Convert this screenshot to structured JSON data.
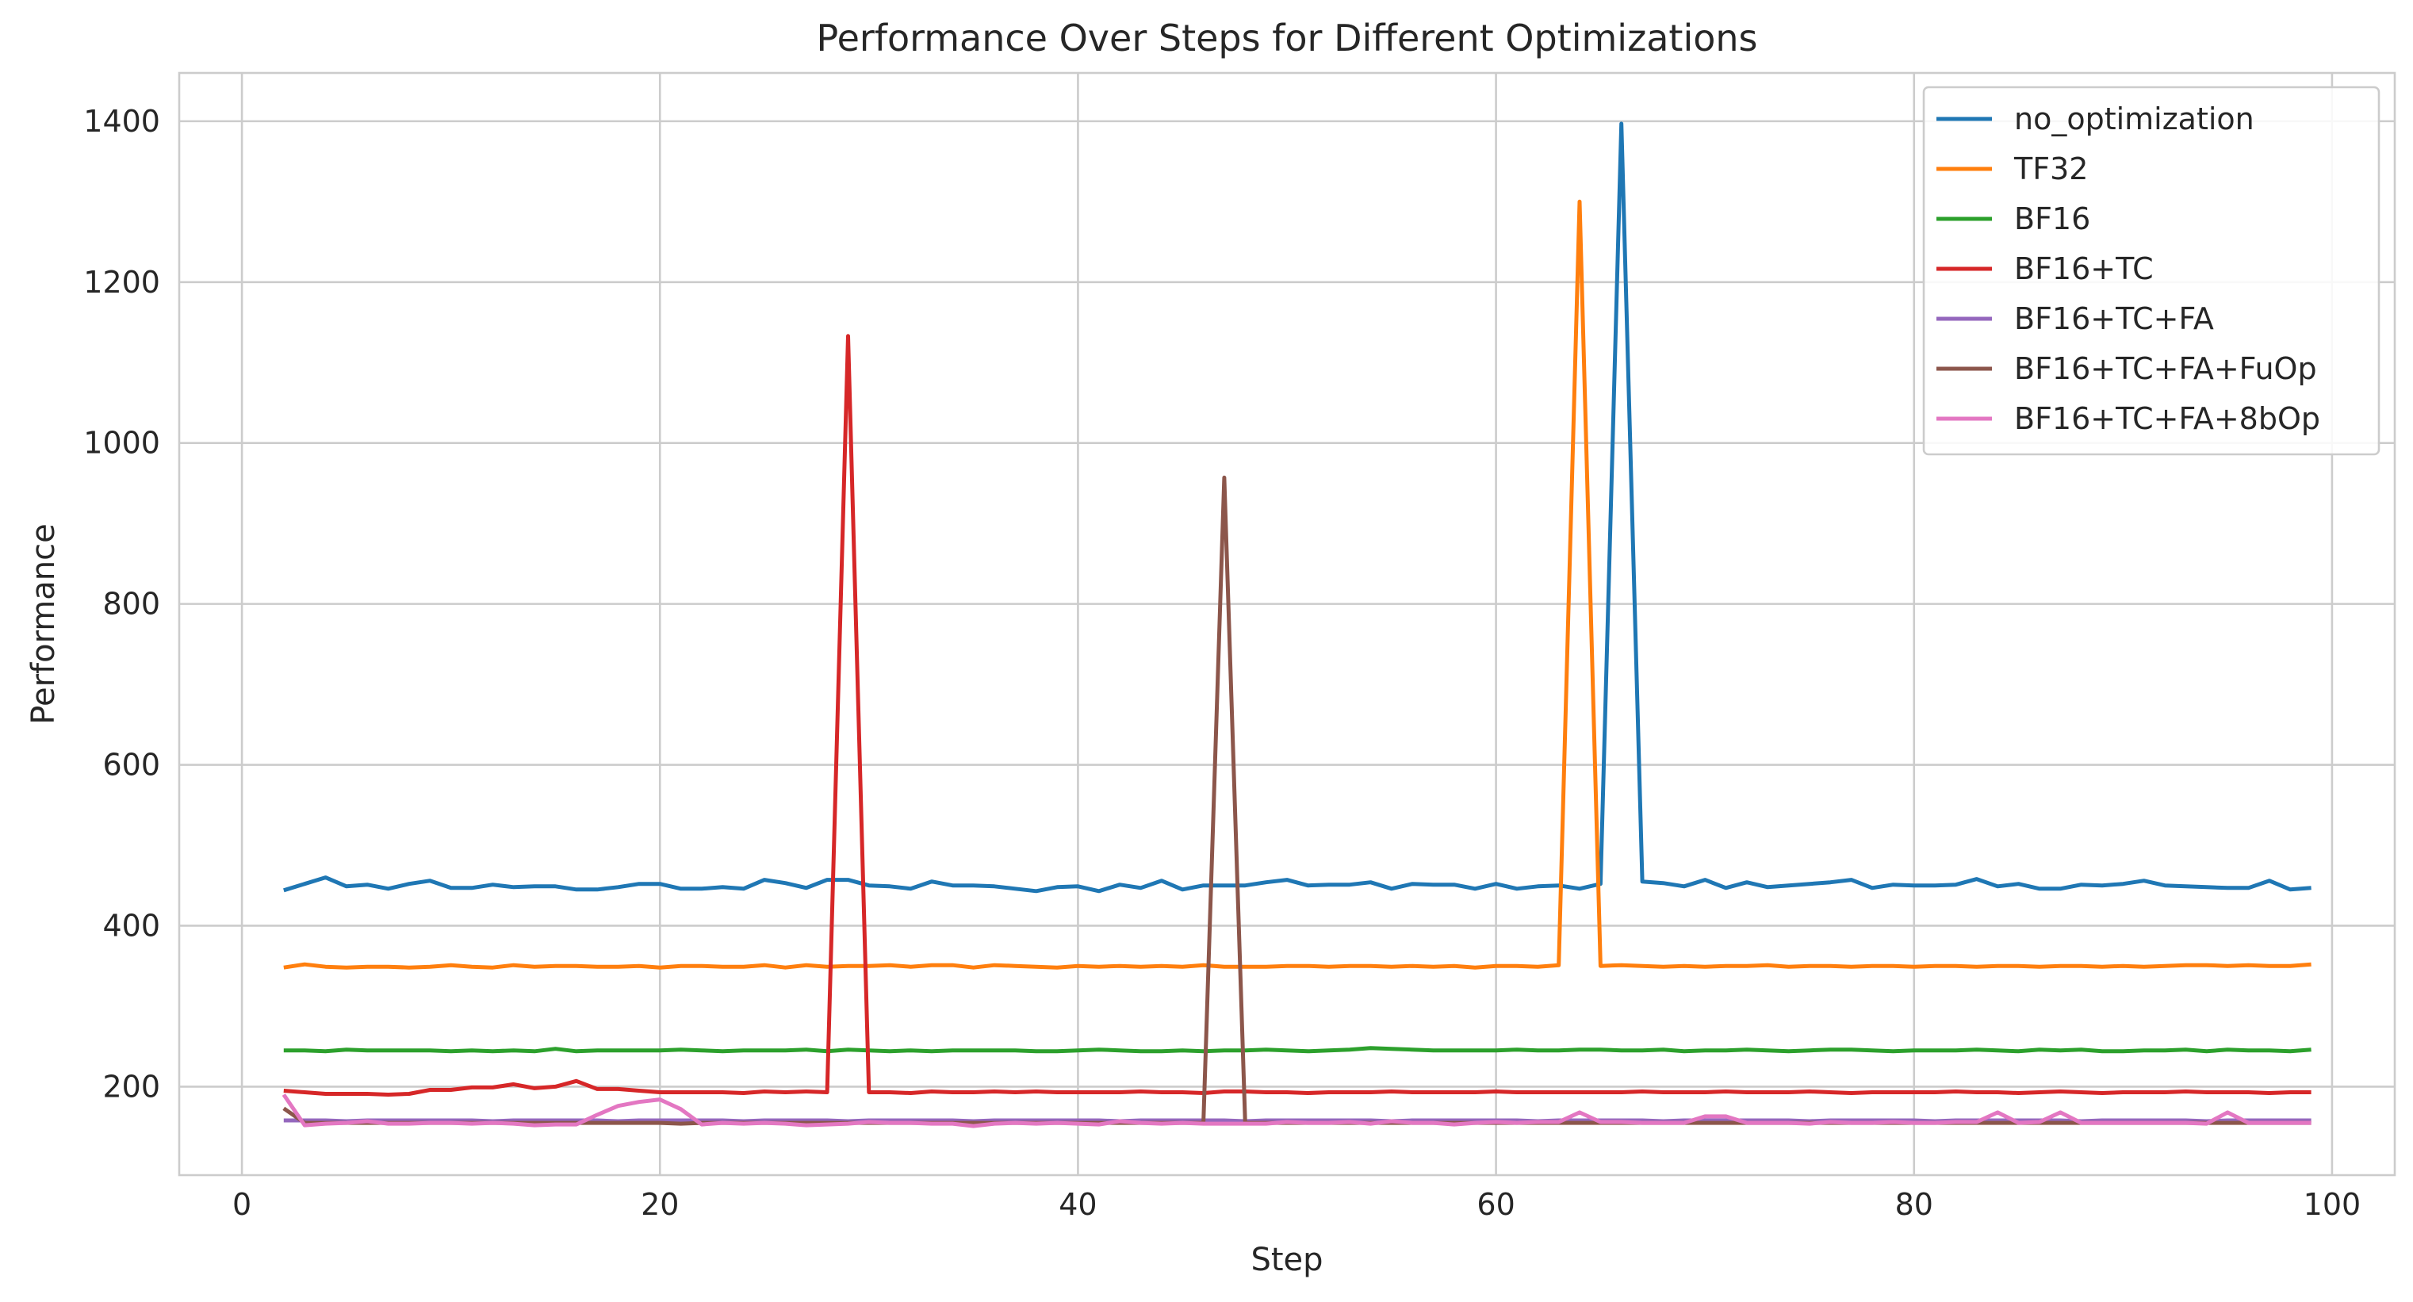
{
  "chart_data": {
    "type": "line",
    "title": "Performance Over Steps for Different Optimizations",
    "xlabel": "Step",
    "ylabel": "Performance",
    "xlim": [
      -3,
      103
    ],
    "ylim": [
      90,
      1460
    ],
    "x_ticks": [
      0,
      20,
      40,
      60,
      80,
      100
    ],
    "y_ticks": [
      200,
      400,
      600,
      800,
      1000,
      1200,
      1400
    ],
    "grid": true,
    "legend_position": "top-right",
    "x": [
      2,
      3,
      4,
      5,
      6,
      7,
      8,
      9,
      10,
      11,
      12,
      13,
      14,
      15,
      16,
      17,
      18,
      19,
      20,
      21,
      22,
      23,
      24,
      25,
      26,
      27,
      28,
      29,
      30,
      31,
      32,
      33,
      34,
      35,
      36,
      37,
      38,
      39,
      40,
      41,
      42,
      43,
      44,
      45,
      46,
      47,
      48,
      49,
      50,
      51,
      52,
      53,
      54,
      55,
      56,
      57,
      58,
      59,
      60,
      61,
      62,
      63,
      64,
      65,
      66,
      67,
      68,
      69,
      70,
      71,
      72,
      73,
      74,
      75,
      76,
      77,
      78,
      79,
      80,
      81,
      82,
      83,
      84,
      85,
      86,
      87,
      88,
      89,
      90,
      91,
      92,
      93,
      94,
      95,
      96,
      97,
      98,
      99
    ],
    "series": [
      {
        "name": "no_optimization",
        "color": "#1f77b4",
        "values": [
          444,
          452,
          460,
          449,
          451,
          446,
          452,
          456,
          447,
          447,
          451,
          448,
          449,
          449,
          445,
          445,
          448,
          452,
          452,
          446,
          446,
          448,
          446,
          457,
          453,
          447,
          457,
          457,
          450,
          449,
          446,
          455,
          450,
          450,
          449,
          446,
          443,
          448,
          449,
          443,
          451,
          447,
          456,
          445,
          450,
          450,
          450,
          454,
          457,
          450,
          451,
          451,
          454,
          446,
          452,
          451,
          451,
          446,
          452,
          446,
          449,
          450,
          446,
          452,
          1397,
          455,
          453,
          449,
          457,
          447,
          454,
          448,
          450,
          452,
          454,
          457,
          447,
          451,
          450,
          450,
          451,
          458,
          449,
          452,
          446,
          446,
          451,
          450,
          452,
          456,
          450,
          449,
          448,
          447,
          447,
          456,
          445,
          447
        ]
      },
      {
        "name": "TF32",
        "color": "#ff7f0e",
        "values": [
          348,
          352,
          349,
          348,
          349,
          349,
          348,
          349,
          351,
          349,
          348,
          351,
          349,
          350,
          350,
          349,
          349,
          350,
          348,
          350,
          350,
          349,
          349,
          351,
          348,
          351,
          349,
          350,
          350,
          351,
          349,
          351,
          351,
          348,
          351,
          350,
          349,
          348,
          350,
          349,
          350,
          349,
          350,
          349,
          351,
          349,
          349,
          349,
          350,
          350,
          349,
          350,
          350,
          349,
          350,
          349,
          350,
          348,
          350,
          350,
          349,
          351,
          1300,
          350,
          351,
          350,
          349,
          350,
          349,
          350,
          350,
          351,
          349,
          350,
          350,
          349,
          350,
          350,
          349,
          350,
          350,
          349,
          350,
          350,
          349,
          350,
          350,
          349,
          350,
          349,
          350,
          351,
          351,
          350,
          351,
          350,
          350,
          352
        ]
      },
      {
        "name": "BF16",
        "color": "#2ca02c",
        "values": [
          245,
          245,
          244,
          246,
          245,
          245,
          245,
          245,
          244,
          245,
          244,
          245,
          244,
          247,
          244,
          245,
          245,
          245,
          245,
          246,
          245,
          244,
          245,
          245,
          245,
          246,
          244,
          246,
          245,
          244,
          245,
          244,
          245,
          245,
          245,
          245,
          244,
          244,
          245,
          246,
          245,
          244,
          244,
          245,
          244,
          245,
          245,
          246,
          245,
          244,
          245,
          246,
          248,
          247,
          246,
          245,
          245,
          245,
          245,
          246,
          245,
          245,
          246,
          246,
          245,
          245,
          246,
          244,
          245,
          245,
          246,
          245,
          244,
          245,
          246,
          246,
          245,
          244,
          245,
          245,
          245,
          246,
          245,
          244,
          246,
          245,
          246,
          244,
          244,
          245,
          245,
          246,
          244,
          246,
          245,
          245,
          244,
          246
        ]
      },
      {
        "name": "BF16+TC",
        "color": "#d62728",
        "values": [
          195,
          193,
          191,
          191,
          191,
          190,
          191,
          196,
          196,
          199,
          199,
          203,
          198,
          200,
          207,
          197,
          197,
          195,
          193,
          193,
          193,
          193,
          192,
          194,
          193,
          194,
          193,
          1133,
          193,
          193,
          192,
          194,
          193,
          193,
          194,
          193,
          194,
          193,
          193,
          193,
          193,
          194,
          193,
          193,
          192,
          194,
          194,
          193,
          193,
          192,
          193,
          193,
          193,
          194,
          193,
          193,
          193,
          193,
          194,
          193,
          193,
          193,
          193,
          193,
          193,
          194,
          193,
          193,
          193,
          194,
          193,
          193,
          193,
          194,
          193,
          192,
          193,
          193,
          193,
          193,
          194,
          193,
          193,
          192,
          193,
          194,
          193,
          192,
          193,
          193,
          193,
          194,
          193,
          193,
          193,
          192,
          193,
          193
        ]
      },
      {
        "name": "BF16+TC+FA",
        "color": "#9467bd",
        "values": [
          158,
          158,
          158,
          157,
          158,
          158,
          158,
          158,
          158,
          158,
          157,
          158,
          158,
          158,
          158,
          158,
          157,
          158,
          158,
          158,
          158,
          158,
          157,
          158,
          158,
          158,
          158,
          157,
          158,
          158,
          158,
          158,
          158,
          157,
          158,
          158,
          158,
          158,
          158,
          158,
          157,
          158,
          158,
          158,
          158,
          158,
          157,
          158,
          158,
          158,
          158,
          158,
          158,
          157,
          158,
          158,
          158,
          158,
          158,
          158,
          157,
          158,
          158,
          158,
          158,
          158,
          157,
          158,
          158,
          158,
          158,
          158,
          158,
          157,
          158,
          158,
          158,
          158,
          158,
          157,
          158,
          158,
          158,
          158,
          158,
          158,
          157,
          158,
          158,
          158,
          158,
          158,
          157,
          158,
          158,
          158,
          158,
          158
        ]
      },
      {
        "name": "BF16+TC+FA+FuOp",
        "color": "#8c564b",
        "values": [
          173,
          155,
          155,
          155,
          155,
          155,
          155,
          155,
          155,
          155,
          155,
          155,
          155,
          155,
          155,
          155,
          155,
          155,
          155,
          154,
          155,
          155,
          155,
          155,
          155,
          155,
          155,
          155,
          155,
          155,
          155,
          155,
          155,
          155,
          155,
          155,
          155,
          155,
          155,
          155,
          155,
          155,
          155,
          155,
          155,
          957,
          155,
          155,
          155,
          155,
          155,
          155,
          155,
          155,
          155,
          155,
          155,
          155,
          155,
          155,
          155,
          155,
          155,
          155,
          155,
          155,
          155,
          155,
          155,
          155,
          155,
          155,
          155,
          155,
          155,
          155,
          155,
          155,
          155,
          155,
          155,
          155,
          155,
          155,
          155,
          155,
          155,
          155,
          155,
          155,
          155,
          155,
          155,
          155,
          155,
          155,
          155,
          155
        ]
      },
      {
        "name": "BF16+TC+FA+8bOp",
        "color": "#e377c2",
        "values": [
          190,
          152,
          154,
          155,
          157,
          154,
          154,
          155,
          155,
          154,
          155,
          154,
          152,
          153,
          153,
          165,
          176,
          181,
          184,
          172,
          153,
          155,
          154,
          155,
          154,
          152,
          153,
          154,
          156,
          155,
          155,
          154,
          154,
          151,
          154,
          155,
          154,
          155,
          154,
          153,
          157,
          155,
          154,
          155,
          154,
          154,
          154,
          154,
          156,
          155,
          155,
          156,
          154,
          157,
          155,
          155,
          153,
          155,
          156,
          155,
          156,
          156,
          168,
          156,
          156,
          155,
          155,
          155,
          163,
          163,
          155,
          155,
          155,
          154,
          156,
          155,
          155,
          156,
          155,
          155,
          156,
          156,
          168,
          155,
          156,
          168,
          155,
          155,
          155,
          155,
          155,
          155,
          154,
          168,
          155,
          155,
          155,
          155
        ]
      }
    ]
  }
}
